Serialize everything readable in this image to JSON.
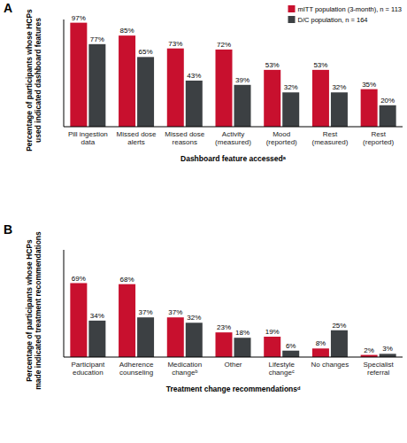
{
  "chart_data": [
    {
      "type": "bar",
      "title": "A",
      "y_label": "Percentage of participants whose HCPs used indicated dashboard features",
      "x_label": "Dashboard feature accessedᵃ",
      "categories": [
        "Pill ingestion data",
        "Missed dose alerts",
        "Missed dose reasons",
        "Activity (measured)",
        "Mood (reported)",
        "Rest (measured)",
        "Rest (reported)"
      ],
      "series": [
        {
          "name": "mITT population (3-month), n = 113",
          "color": "#c8102e",
          "values": [
            97,
            85,
            73,
            72,
            53,
            53,
            35
          ],
          "value_labels": [
            "97%",
            "85%",
            "73%",
            "72%",
            "53%",
            "53%",
            "35%"
          ]
        },
        {
          "name": "D/C population, n = 164",
          "color": "#3c4043",
          "values": [
            77,
            65,
            43,
            39,
            32,
            32,
            20
          ],
          "value_labels": [
            "77%",
            "65%",
            "43%",
            "39%",
            "32%",
            "32%",
            "20%"
          ]
        }
      ],
      "ylim": [
        0,
        100
      ],
      "legend": "top-right",
      "data_labels": true,
      "tick_labels": "x"
    },
    {
      "type": "bar",
      "title": "B",
      "y_label": "Percentage of participants whose HCPs made indicated treatment recommendations",
      "x_label": "Treatment change recommendationsᵈ",
      "categories": [
        "Participant education",
        "Adherence counseling",
        "Medication changeᵇ",
        "Other",
        "Lifestyle changeᶜ",
        "No changes",
        "Specialist referral"
      ],
      "series": [
        {
          "color": "#c8102e",
          "values": [
            69,
            68,
            37,
            23,
            19,
            8,
            2
          ],
          "value_labels": [
            "69%",
            "68%",
            "37%",
            "23%",
            "19%",
            "8%",
            "2%"
          ]
        },
        {
          "color": "#3c4043",
          "values": [
            34,
            37,
            32,
            18,
            6,
            25,
            3
          ],
          "value_labels": [
            "34%",
            "37%",
            "32%",
            "18%",
            "6%",
            "25%",
            "3%"
          ]
        }
      ],
      "ylim": [
        0,
        100
      ],
      "data_labels": true,
      "tick_labels": "x"
    }
  ]
}
